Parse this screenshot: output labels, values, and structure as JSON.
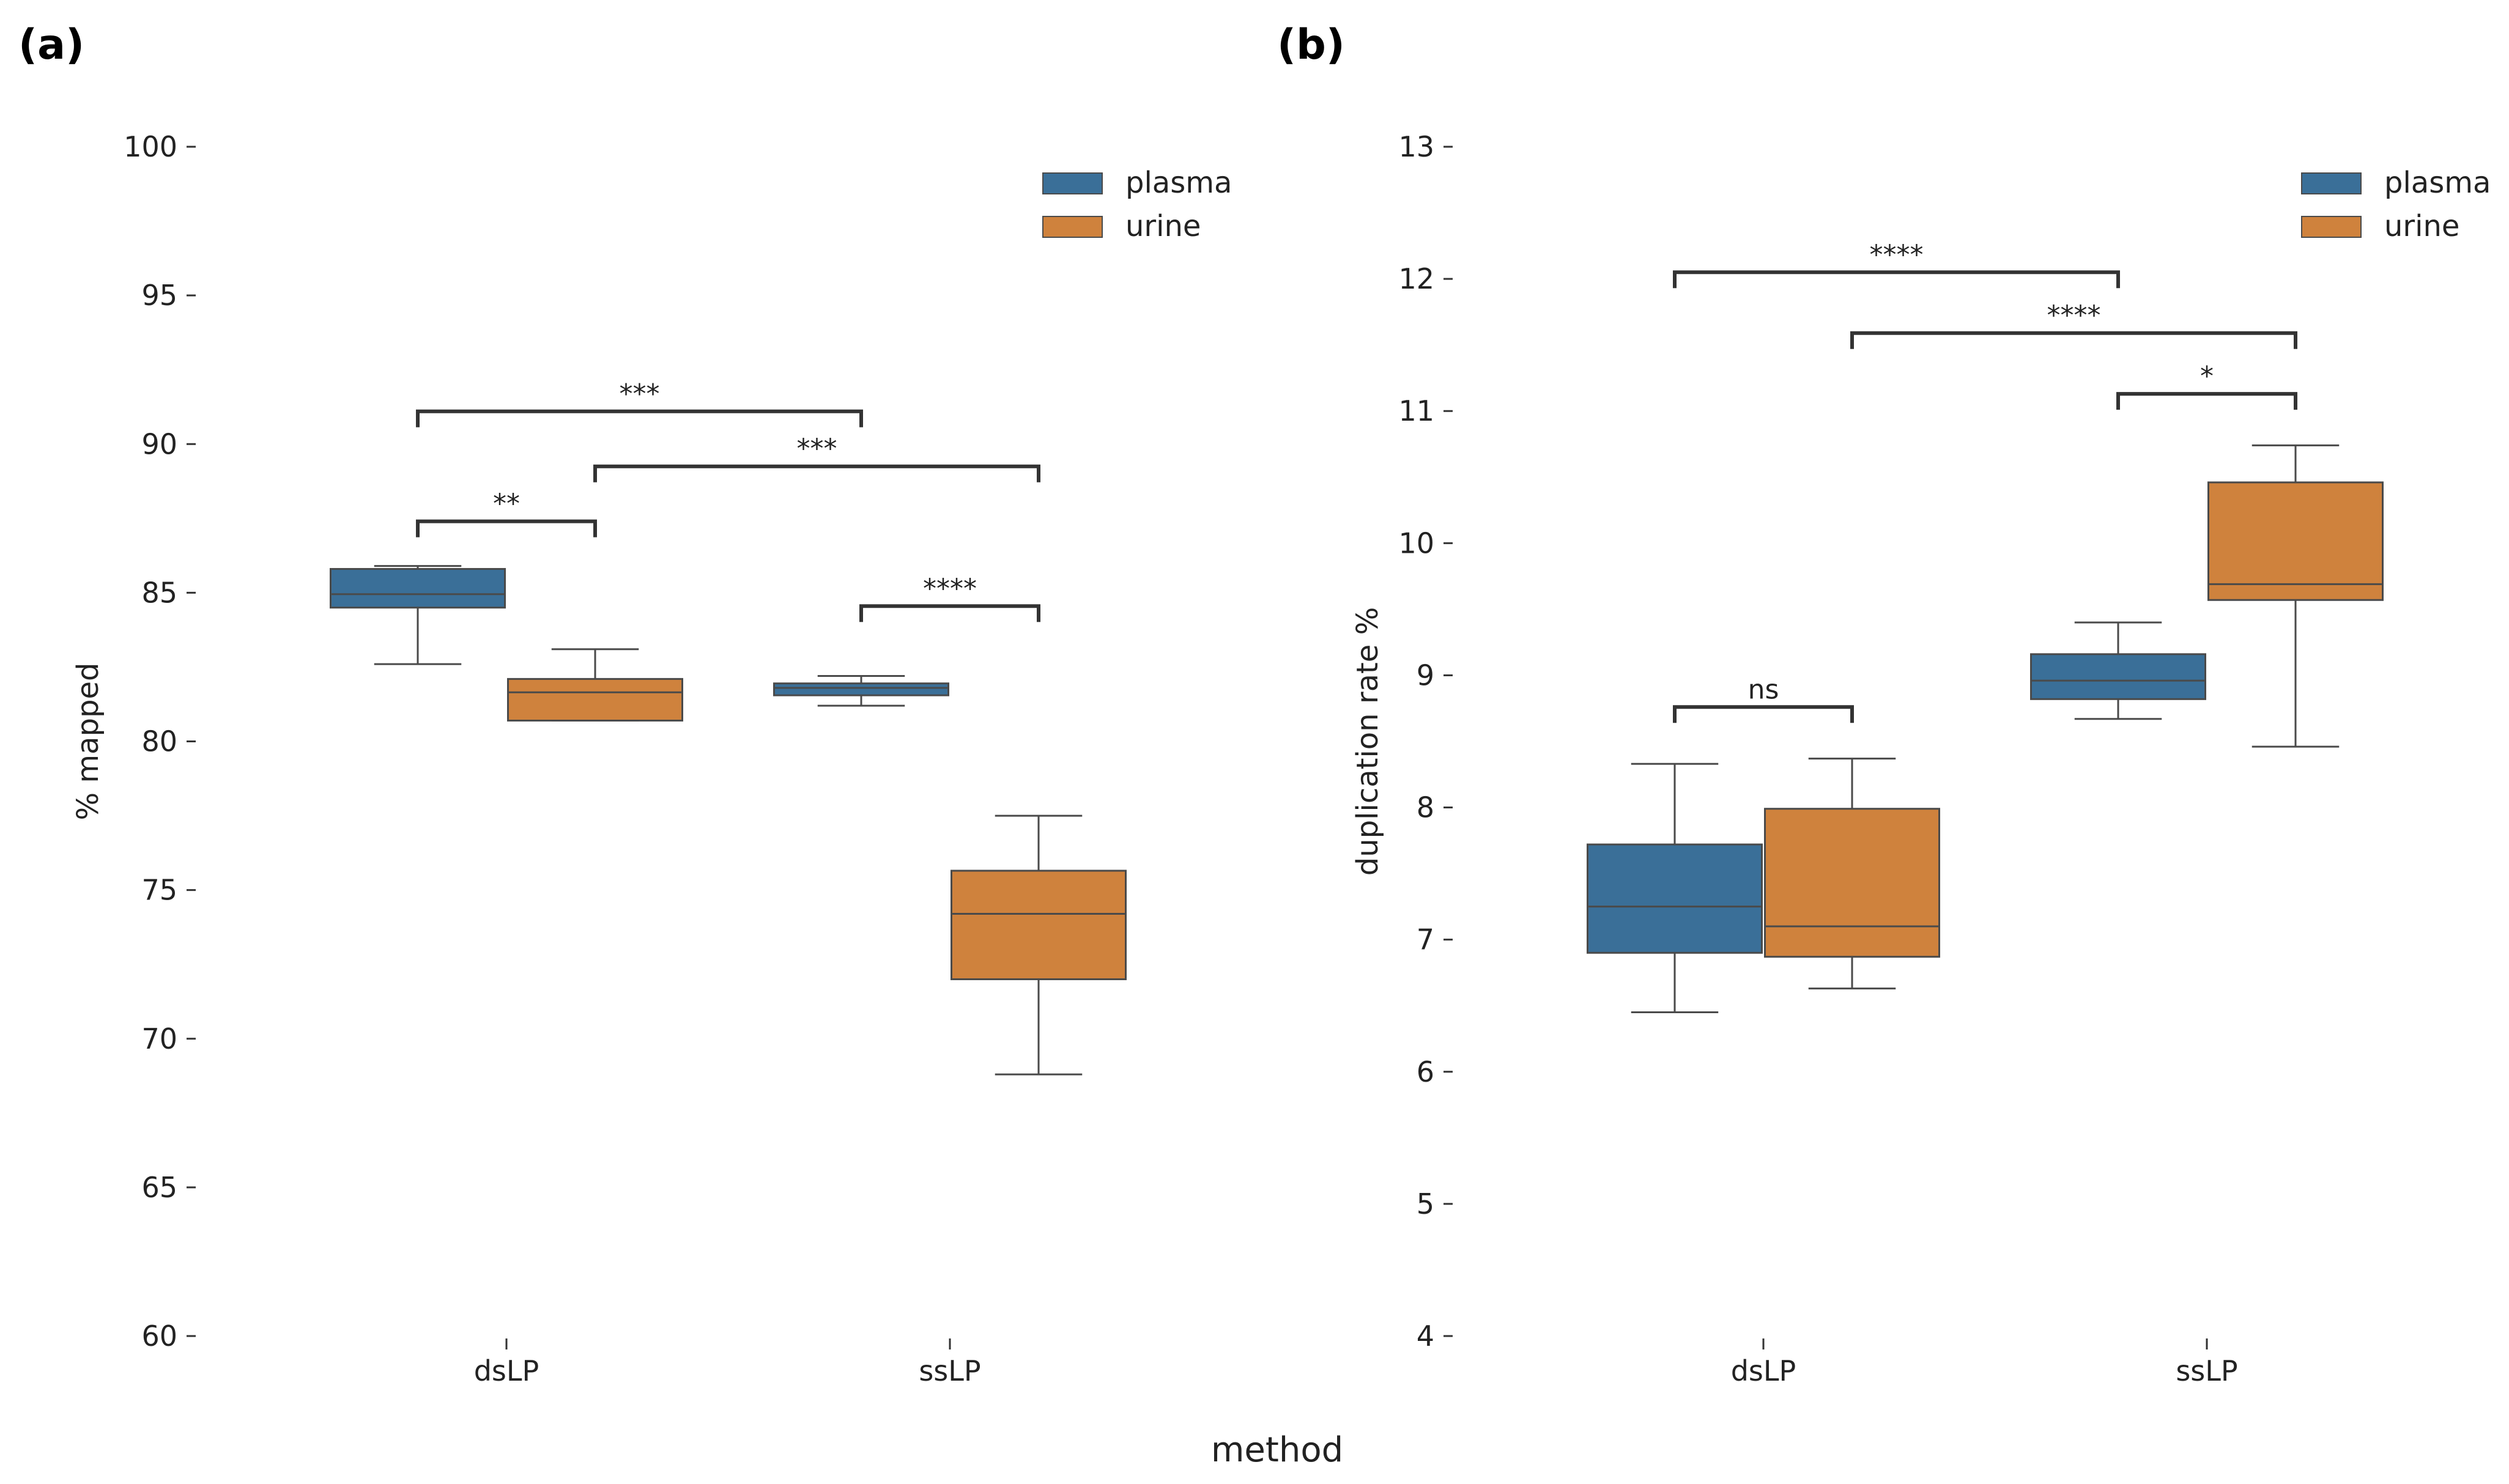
{
  "figure": {
    "xlabel": "method"
  },
  "colors": {
    "plasma": "#3a6f98",
    "urine": "#cf823d",
    "line": "#4a4a4a",
    "bracket": "#333333"
  },
  "chart_data": [
    {
      "panel": "(a)",
      "type": "box",
      "ylabel": "% mapped",
      "ylim": [
        60,
        100
      ],
      "yticks": [
        60,
        65,
        70,
        75,
        80,
        85,
        90,
        95,
        100
      ],
      "categories": [
        "dsLP",
        "ssLP"
      ],
      "legend": {
        "position": "top-right",
        "entries": [
          "plasma",
          "urine"
        ]
      },
      "series": [
        {
          "name": "plasma",
          "boxes": [
            {
              "category": "dsLP",
              "whislo": 82.6,
              "q1": 84.5,
              "med": 84.95,
              "q3": 85.8,
              "whishi": 85.9
            },
            {
              "category": "ssLP",
              "whislo": 81.2,
              "q1": 81.55,
              "med": 81.8,
              "q3": 81.95,
              "whishi": 82.2
            }
          ]
        },
        {
          "name": "urine",
          "boxes": [
            {
              "category": "dsLP",
              "whislo": 80.7,
              "q1": 80.7,
              "med": 81.65,
              "q3": 82.1,
              "whishi": 83.1
            },
            {
              "category": "ssLP",
              "whislo": 68.8,
              "q1": 72.0,
              "med": 74.2,
              "q3": 75.65,
              "whishi": 77.5
            }
          ]
        }
      ],
      "annotations": [
        {
          "from": [
            "dsLP",
            "plasma"
          ],
          "to": [
            "ssLP",
            "plasma"
          ],
          "y": 91.1,
          "text": "***"
        },
        {
          "from": [
            "dsLP",
            "urine"
          ],
          "to": [
            "ssLP",
            "urine"
          ],
          "y": 89.25,
          "text": "***"
        },
        {
          "from": [
            "dsLP",
            "plasma"
          ],
          "to": [
            "dsLP",
            "urine"
          ],
          "y": 87.4,
          "text": "**"
        },
        {
          "from": [
            "ssLP",
            "plasma"
          ],
          "to": [
            "ssLP",
            "urine"
          ],
          "y": 84.55,
          "text": "****"
        }
      ]
    },
    {
      "panel": "(b)",
      "type": "box",
      "ylabel": "duplication rate %",
      "ylim": [
        4,
        13
      ],
      "yticks": [
        4,
        5,
        6,
        7,
        8,
        9,
        10,
        11,
        12,
        13
      ],
      "categories": [
        "dsLP",
        "ssLP"
      ],
      "legend": {
        "position": "top-right",
        "entries": [
          "plasma",
          "urine"
        ]
      },
      "series": [
        {
          "name": "plasma",
          "boxes": [
            {
              "category": "dsLP",
              "whislo": 6.45,
              "q1": 6.9,
              "med": 7.25,
              "q3": 7.72,
              "whishi": 8.33
            },
            {
              "category": "ssLP",
              "whislo": 8.67,
              "q1": 8.82,
              "med": 8.96,
              "q3": 9.16,
              "whishi": 9.4
            }
          ]
        },
        {
          "name": "urine",
          "boxes": [
            {
              "category": "dsLP",
              "whislo": 6.63,
              "q1": 6.87,
              "med": 7.1,
              "q3": 7.99,
              "whishi": 8.37
            },
            {
              "category": "ssLP",
              "whislo": 8.46,
              "q1": 9.57,
              "med": 9.69,
              "q3": 10.46,
              "whishi": 10.74
            }
          ]
        }
      ],
      "annotations": [
        {
          "from": [
            "dsLP",
            "plasma"
          ],
          "to": [
            "ssLP",
            "plasma"
          ],
          "y": 12.05,
          "text": "****"
        },
        {
          "from": [
            "dsLP",
            "urine"
          ],
          "to": [
            "ssLP",
            "urine"
          ],
          "y": 11.59,
          "text": "****"
        },
        {
          "from": [
            "ssLP",
            "plasma"
          ],
          "to": [
            "ssLP",
            "urine"
          ],
          "y": 11.13,
          "text": "*"
        },
        {
          "from": [
            "dsLP",
            "plasma"
          ],
          "to": [
            "dsLP",
            "urine"
          ],
          "y": 8.76,
          "text": "ns"
        }
      ]
    }
  ]
}
